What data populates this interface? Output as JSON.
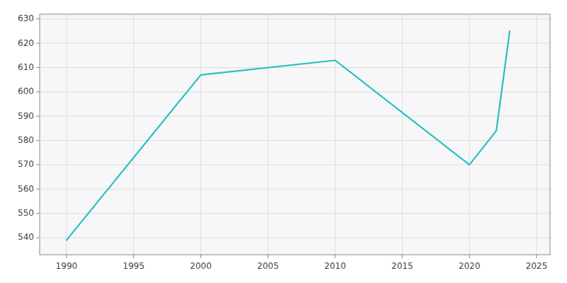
{
  "chart_data": {
    "type": "line",
    "x": [
      1990,
      2000,
      2010,
      2020,
      2022,
      2023
    ],
    "values": [
      539,
      607,
      613,
      570,
      584,
      625
    ],
    "color": "#2ABFBF",
    "xlim": [
      1988,
      2026
    ],
    "ylim": [
      533,
      632
    ],
    "xticks": [
      1990,
      1995,
      2000,
      2005,
      2010,
      2015,
      2020,
      2025
    ],
    "yticks": [
      540,
      550,
      560,
      570,
      580,
      590,
      600,
      610,
      620,
      630
    ],
    "grid": true
  }
}
